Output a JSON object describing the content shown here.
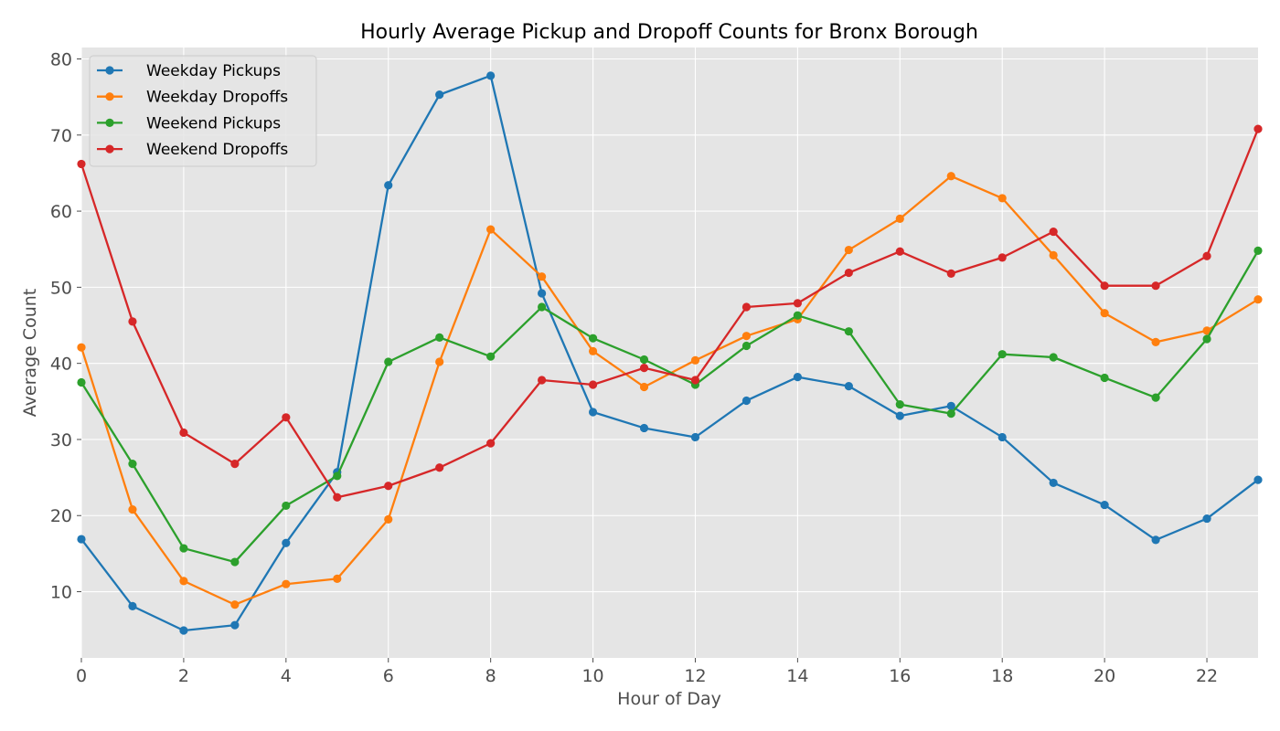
{
  "chart_data": {
    "type": "line",
    "title": "Hourly Average Pickup and Dropoff Counts for Bronx Borough",
    "xlabel": "Hour of Day",
    "ylabel": "Average Count",
    "xlim": [
      0,
      23
    ],
    "ylim": [
      1.3,
      81.5
    ],
    "xticks": [
      0,
      2,
      4,
      6,
      8,
      10,
      12,
      14,
      16,
      18,
      20,
      22
    ],
    "yticks": [
      10,
      20,
      30,
      40,
      50,
      60,
      70,
      80
    ],
    "grid": true,
    "legend_position": "top-left",
    "x": [
      0,
      1,
      2,
      3,
      4,
      5,
      6,
      7,
      8,
      9,
      10,
      11,
      12,
      13,
      14,
      15,
      16,
      17,
      18,
      19,
      20,
      21,
      22,
      23
    ],
    "series": [
      {
        "name": "Weekday Pickups",
        "color": "#1f77b4",
        "values": [
          16.9,
          8.1,
          4.9,
          5.6,
          16.4,
          25.7,
          63.4,
          75.3,
          77.8,
          49.2,
          33.6,
          31.5,
          30.3,
          35.1,
          38.2,
          37.0,
          33.1,
          34.4,
          30.3,
          24.3,
          21.4,
          16.8,
          19.6,
          24.7
        ]
      },
      {
        "name": "Weekday Dropoffs",
        "color": "#ff7f0e",
        "values": [
          42.1,
          20.8,
          11.4,
          8.3,
          11.0,
          11.7,
          19.5,
          40.2,
          57.6,
          51.4,
          41.6,
          36.9,
          40.4,
          43.6,
          45.8,
          54.9,
          59.0,
          64.6,
          61.7,
          54.2,
          46.6,
          42.8,
          44.3,
          48.4
        ]
      },
      {
        "name": "Weekend Pickups",
        "color": "#2ca02c",
        "values": [
          37.5,
          26.8,
          15.7,
          13.9,
          21.3,
          25.2,
          40.2,
          43.4,
          40.9,
          47.4,
          43.3,
          40.5,
          37.2,
          42.3,
          46.3,
          44.2,
          34.6,
          33.4,
          41.2,
          40.8,
          38.1,
          35.5,
          43.2,
          54.8
        ]
      },
      {
        "name": "Weekend Dropoffs",
        "color": "#d62728",
        "values": [
          66.2,
          45.5,
          30.9,
          26.8,
          32.9,
          22.4,
          23.9,
          26.3,
          29.5,
          37.8,
          37.2,
          39.4,
          37.8,
          47.4,
          47.9,
          51.9,
          54.7,
          51.8,
          53.9,
          57.3,
          50.2,
          50.2,
          54.1,
          70.8
        ]
      }
    ]
  },
  "style": {
    "plot_background": "#e5e5e5",
    "grid_color": "#ffffff",
    "tick_color": "#4d4d4d",
    "legend_background": "#e5e5e5",
    "legend_border": "#cccccc"
  }
}
